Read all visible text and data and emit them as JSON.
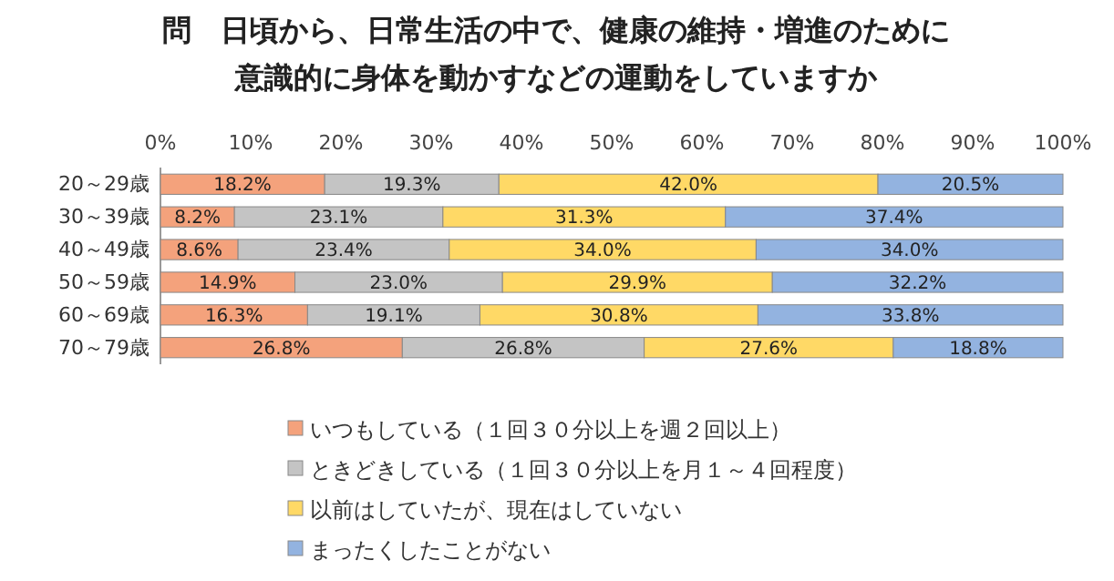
{
  "chart_data": {
    "type": "bar",
    "orientation": "horizontal",
    "stacked": true,
    "title": "問　日頃から、日常生活の中で、健康の維持・増進のために意識的に身体を動かすなどの運動をしていますか",
    "categories": [
      "20～29歳",
      "30～39歳",
      "40～49歳",
      "50～59歳",
      "60～69歳",
      "70～79歳"
    ],
    "xlim": [
      0,
      100
    ],
    "xticks": [
      {
        "value": 0,
        "label": "0%"
      },
      {
        "value": 10,
        "label": "10%"
      },
      {
        "value": 20,
        "label": "20%"
      },
      {
        "value": 30,
        "label": "30%"
      },
      {
        "value": 40,
        "label": "40%"
      },
      {
        "value": 50,
        "label": "50%"
      },
      {
        "value": 60,
        "label": "60%"
      },
      {
        "value": 70,
        "label": "70%"
      },
      {
        "value": 80,
        "label": "80%"
      },
      {
        "value": 90,
        "label": "90%"
      },
      {
        "value": 100,
        "label": "100%"
      }
    ],
    "legend": "bottom",
    "series": [
      {
        "name": "いつもしている（１回３０分以上を週２回以上）",
        "color": "#f4a27c",
        "values": [
          18.2,
          8.2,
          8.6,
          14.9,
          16.3,
          26.8
        ],
        "value_labels": [
          "18.2%",
          "8.2%",
          "8.6%",
          "14.9%",
          "16.3%",
          "26.8%"
        ]
      },
      {
        "name": "ときどきしている（１回３０分以上を月１～４回程度）",
        "color": "#c4c4c4",
        "values": [
          19.3,
          23.1,
          23.4,
          23.0,
          19.1,
          26.8
        ],
        "value_labels": [
          "19.3%",
          "23.1%",
          "23.4%",
          "23.0%",
          "19.1%",
          "26.8%"
        ]
      },
      {
        "name": "以前はしていたが、現在はしていない",
        "color": "#ffd966",
        "values": [
          42.0,
          31.3,
          34.0,
          29.9,
          30.8,
          27.6
        ],
        "value_labels": [
          "42.0%",
          "31.3%",
          "34.0%",
          "29.9%",
          "30.8%",
          "27.6%"
        ]
      },
      {
        "name": "まったくしたことがない",
        "color": "#93b3e0",
        "values": [
          20.5,
          37.4,
          34.0,
          32.2,
          33.8,
          18.8
        ],
        "value_labels": [
          "20.5%",
          "37.4%",
          "34.0%",
          "32.2%",
          "33.8%",
          "18.8%"
        ]
      }
    ]
  }
}
